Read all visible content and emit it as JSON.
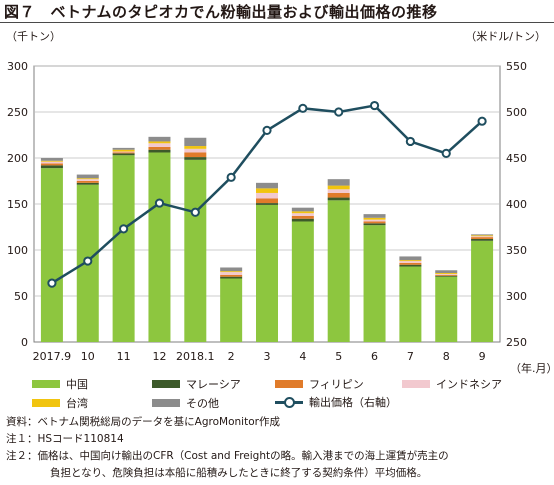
{
  "title": "図７　ベトナムのタピオカでん粉輸出量および輸出価格の推移",
  "left_unit": "（千トン）",
  "right_unit": "（米ドル/トン）",
  "x_unit": "（年.月）",
  "legend": {
    "china": "中国",
    "malaysia": "マレーシア",
    "philippines": "フィリピン",
    "indonesia": "インドネシア",
    "taiwan": "台湾",
    "other": "その他",
    "price": "輸出価格（右軸）"
  },
  "notes": {
    "source": "資料：ベトナム関税総局のデータを基にAgroMonitor作成",
    "note1": "注１：HSコード110814",
    "note2a": "注２：価格は、中国向け輸出のCFR（Cost and Freightの略。輸入港までの海上運賃が売主の",
    "note2b": "負担となり、危険負担は本船に船積みしたときに終了する契約条件）平均価格。"
  },
  "colors": {
    "china": "#8dc63f",
    "malaysia": "#3d5a2a",
    "philippines": "#e07b2a",
    "indonesia": "#f2c9cf",
    "taiwan": "#f1c40f",
    "other": "#8c8c8c",
    "price": "#1f4e5f"
  },
  "chart_data": {
    "type": "bar",
    "categories": [
      "2017.9",
      "10",
      "11",
      "12",
      "2018.1",
      "2",
      "3",
      "4",
      "5",
      "6",
      "7",
      "8",
      "9"
    ],
    "series": [
      {
        "name": "中国",
        "key": "china",
        "values": [
          189,
          171,
          203,
          206,
          198,
          69,
          149,
          131,
          154,
          127,
          82,
          71,
          110
        ]
      },
      {
        "name": "マレーシア",
        "key": "malaysia",
        "values": [
          3,
          2,
          2,
          3,
          3,
          2,
          2,
          3,
          3,
          2,
          2,
          1,
          2
        ]
      },
      {
        "name": "フィリピン",
        "key": "philippines",
        "values": [
          2,
          2,
          1,
          3,
          5,
          2,
          5,
          3,
          5,
          2,
          2,
          1,
          2
        ]
      },
      {
        "name": "インドネシア",
        "key": "indonesia",
        "values": [
          2,
          2,
          1,
          4,
          4,
          3,
          6,
          3,
          4,
          2,
          2,
          1,
          1
        ]
      },
      {
        "name": "台湾",
        "key": "taiwan",
        "values": [
          1,
          1,
          2,
          2,
          3,
          1,
          5,
          2,
          4,
          2,
          1,
          1,
          1
        ]
      },
      {
        "name": "その他",
        "key": "other",
        "values": [
          3,
          4,
          2,
          5,
          9,
          4,
          6,
          4,
          7,
          4,
          4,
          3,
          1
        ]
      }
    ],
    "line": {
      "name": "輸出価格（右軸）",
      "key": "price",
      "values": [
        314,
        338,
        373,
        401,
        391,
        429,
        480,
        504,
        500,
        507,
        468,
        455,
        490
      ]
    },
    "ylim": [
      0,
      300
    ],
    "yticks": [
      0,
      50,
      100,
      150,
      200,
      250,
      300
    ],
    "y2lim": [
      250,
      550
    ],
    "y2ticks": [
      250,
      300,
      350,
      400,
      450,
      500,
      550
    ],
    "grid": true
  }
}
